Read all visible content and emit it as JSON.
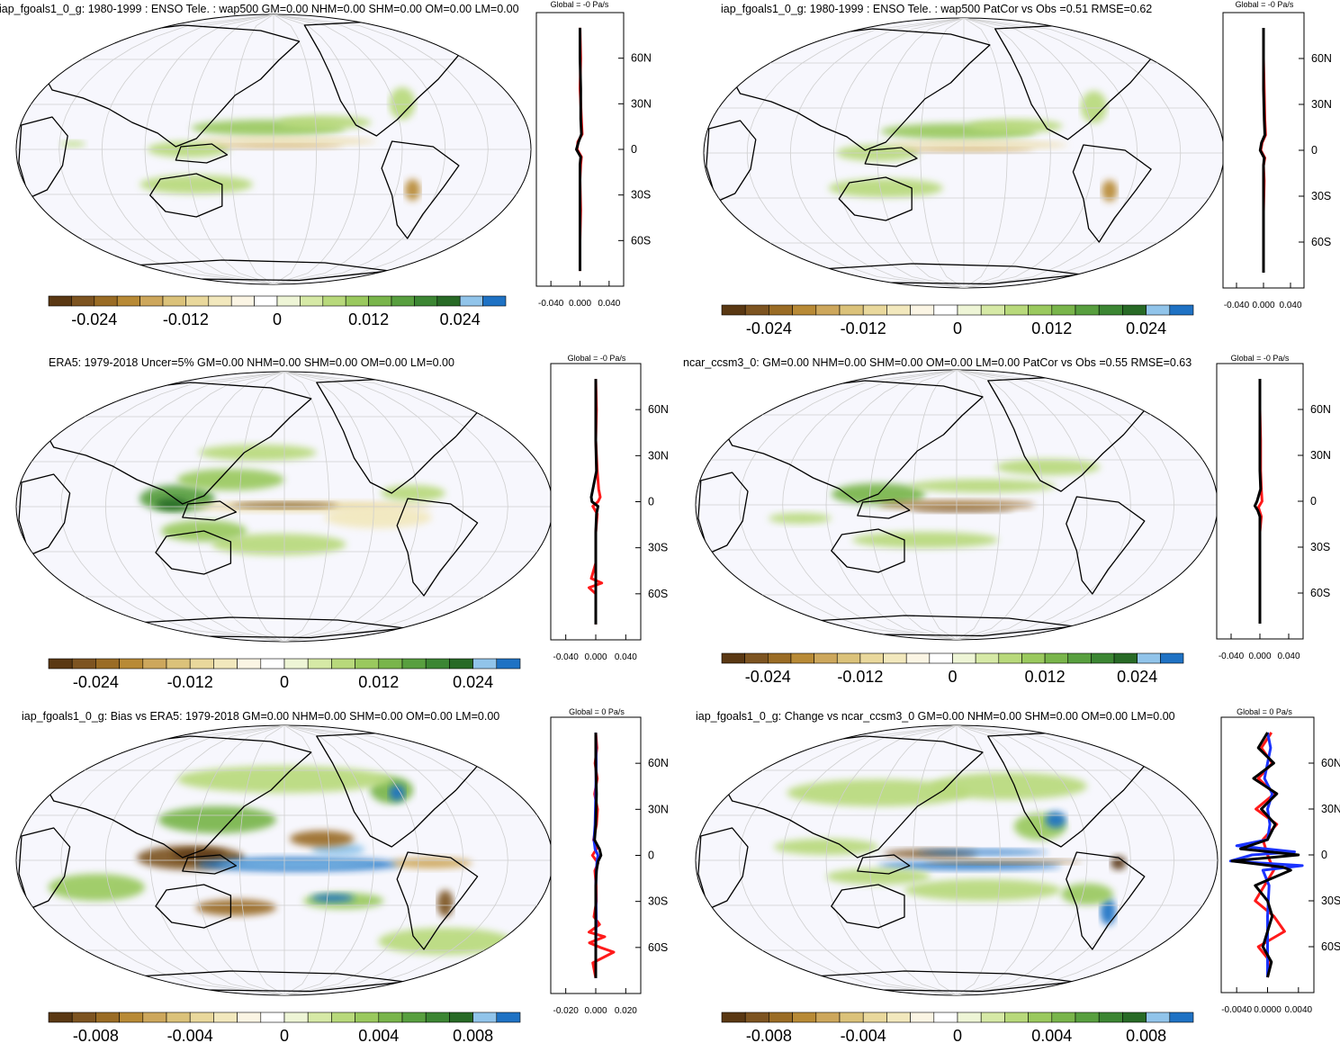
{
  "figure": {
    "palette": [
      "#5a3813",
      "#7d5421",
      "#9a6c25",
      "#b88a36",
      "#cda75c",
      "#dbc27a",
      "#e9d89c",
      "#f2e8bd",
      "#fbf5e4",
      "#ffffff",
      "#eef5d6",
      "#d6e9a6",
      "#b8d97b",
      "#9ac95e",
      "#79b54b",
      "#589f3f",
      "#3c8633",
      "#286a26",
      "#91c4ea",
      "#1f72c4"
    ],
    "land_color": "#f7f7fd",
    "grid_color": "#cfcfcf"
  },
  "chart_data": [
    {
      "type": "heatmap",
      "panel": "top-left",
      "title": "iap_fgoals1_0_g: 1980-1999 : ENSO Tele. : wap500 GM=0.00 NHM=0.00 SHM=0.00 OM=0.00 LM=0.00",
      "colorbar_ticks": [
        "-0.024",
        "-0.012",
        "0",
        "0.012",
        "0.024"
      ],
      "colorbar_range": [
        -0.03,
        0.03
      ],
      "zonal_title": "Global = -0 Pa/s",
      "zonal_xticks": [
        "-0.040",
        "0.000",
        "0.040"
      ],
      "zonal_xlim": [
        -0.06,
        0.06
      ],
      "zonal_yticks": [
        "60N",
        "30N",
        "0",
        "30S",
        "60S"
      ],
      "zonal_profile": {
        "lat": [
          80,
          60,
          40,
          20,
          10,
          5,
          0,
          -5,
          -10,
          -20,
          -40,
          -60,
          -80
        ],
        "values": [
          0.0,
          0.001,
          0.0,
          0.002,
          0.003,
          -0.003,
          -0.004,
          0.002,
          0.001,
          0.0,
          0.001,
          0.0,
          0.0
        ]
      },
      "zonal_profile_2": {
        "lat": [
          80,
          60,
          40,
          20,
          10,
          5,
          0,
          -5,
          -10,
          -20,
          -40,
          -60,
          -80
        ],
        "values": [
          0.0,
          0.0,
          0.001,
          0.001,
          0.002,
          -0.002,
          -0.005,
          0.001,
          0.0,
          0.0,
          0.0,
          0.0,
          0.0
        ]
      },
      "zonal_profile_3": null
    },
    {
      "type": "heatmap",
      "panel": "top-right",
      "title": "iap_fgoals1_0_g: 1980-1999 : ENSO Tele. : wap500 PatCor vs Obs =0.51 RMSE=0.62",
      "colorbar_ticks": [
        "-0.024",
        "-0.012",
        "0",
        "0.012",
        "0.024"
      ],
      "colorbar_range": [
        -0.03,
        0.03
      ],
      "zonal_title": "Global = -0 Pa/s",
      "zonal_xticks": [
        "-0.040",
        "0.000",
        "0.040"
      ],
      "zonal_xlim": [
        -0.06,
        0.06
      ],
      "zonal_yticks": [
        "60N",
        "30N",
        "0",
        "30S",
        "60S"
      ],
      "zonal_profile": {
        "lat": [
          80,
          60,
          40,
          20,
          10,
          5,
          0,
          -5,
          -10,
          -20,
          -40,
          -60,
          -80
        ],
        "values": [
          0.0,
          0.0,
          0.001,
          0.002,
          0.003,
          -0.002,
          -0.004,
          0.002,
          0.0,
          0.001,
          0.0,
          0.0,
          0.0
        ]
      },
      "zonal_profile_2": {
        "lat": [
          80,
          60,
          40,
          20,
          10,
          5,
          0,
          -5,
          -10,
          -20,
          -40,
          -60,
          -80
        ],
        "values": [
          0.0,
          0.0,
          0.0,
          0.001,
          0.002,
          -0.003,
          -0.005,
          0.001,
          0.0,
          0.0,
          0.0,
          0.0,
          0.0
        ]
      },
      "zonal_profile_3": null
    },
    {
      "type": "heatmap",
      "panel": "middle-left",
      "title": "ERA5: 1979-2018 Uncer=5% GM=0.00 NHM=0.00 SHM=0.00 OM=0.00 LM=0.00",
      "colorbar_ticks": [
        "-0.024",
        "-0.012",
        "0",
        "0.012",
        "0.024"
      ],
      "colorbar_range": [
        -0.03,
        0.03
      ],
      "zonal_title": "Global = -0 Pa/s",
      "zonal_xticks": [
        "-0.040",
        "0.000",
        "0.040"
      ],
      "zonal_xlim": [
        -0.06,
        0.06
      ],
      "zonal_yticks": [
        "60N",
        "30N",
        "0",
        "30S",
        "60S"
      ],
      "zonal_profile": {
        "lat": [
          80,
          60,
          40,
          20,
          8,
          3,
          0,
          -3,
          -8,
          -20,
          -40,
          -50,
          -53,
          -56,
          -60,
          -80
        ],
        "values": [
          0.0,
          0.001,
          0.0,
          0.002,
          0.004,
          0.006,
          0.003,
          -0.004,
          0.002,
          0.0,
          0.0,
          -0.006,
          0.008,
          -0.009,
          0.0,
          0.0
        ]
      },
      "zonal_profile_2": {
        "lat": [
          80,
          60,
          40,
          20,
          8,
          3,
          0,
          -3,
          -8,
          -20,
          -40,
          -60,
          -80
        ],
        "values": [
          0.0,
          0.0,
          0.0,
          0.001,
          -0.004,
          -0.006,
          -0.005,
          0.003,
          0.001,
          0.0,
          0.0,
          0.0,
          0.0
        ]
      },
      "zonal_profile_3": null
    },
    {
      "type": "heatmap",
      "panel": "middle-right",
      "title": "ncar_ccsm3_0: GM=0.00 NHM=0.00 SHM=0.00 OM=0.00 LM=0.00 PatCor vs Obs =0.55 RMSE=0.63",
      "colorbar_ticks": [
        "-0.024",
        "-0.012",
        "0",
        "0.012",
        "0.024"
      ],
      "colorbar_range": [
        -0.03,
        0.03
      ],
      "zonal_title": "Global = -0 Pa/s",
      "zonal_xticks": [
        "-0.040",
        "0.000",
        "0.040"
      ],
      "zonal_xlim": [
        -0.06,
        0.06
      ],
      "zonal_yticks": [
        "60N",
        "30N",
        "0",
        "30S",
        "60S"
      ],
      "zonal_profile": {
        "lat": [
          80,
          60,
          40,
          20,
          8,
          0,
          -4,
          -10,
          -20,
          -40,
          -60,
          -80
        ],
        "values": [
          0.0,
          0.0,
          0.001,
          0.001,
          0.002,
          0.003,
          -0.002,
          0.002,
          0.0,
          0.0,
          0.0,
          0.0
        ]
      },
      "zonal_profile_2": {
        "lat": [
          80,
          60,
          40,
          20,
          8,
          0,
          -3,
          -6,
          -10,
          -20,
          -40,
          -60,
          -80
        ],
        "values": [
          0.0,
          0.0,
          0.0,
          0.0,
          0.001,
          -0.004,
          -0.007,
          -0.003,
          0.0,
          0.0,
          0.0,
          0.0,
          0.0
        ]
      },
      "zonal_profile_3": null
    },
    {
      "type": "heatmap",
      "panel": "bottom-left",
      "title": "iap_fgoals1_0_g: Bias vs ERA5: 1979-2018 GM=0.00 NHM=0.00 SHM=0.00 OM=0.00 LM=0.00",
      "colorbar_ticks": [
        "-0.008",
        "-0.004",
        "0",
        "0.004",
        "0.008"
      ],
      "colorbar_range": [
        -0.01,
        0.01
      ],
      "zonal_title": "Global = 0 Pa/s",
      "zonal_xticks": [
        "-0.020",
        "0.000",
        "0.020"
      ],
      "zonal_xlim": [
        -0.03,
        0.03
      ],
      "zonal_yticks": [
        "60N",
        "30N",
        "0",
        "30S",
        "60S"
      ],
      "zonal_profile": {
        "lat": [
          80,
          70,
          60,
          50,
          40,
          30,
          20,
          10,
          5,
          0,
          -5,
          -10,
          -20,
          -30,
          -40,
          -45,
          -50,
          -53,
          -57,
          -60,
          -63,
          -70,
          -80
        ],
        "values": [
          0.0,
          0.0008,
          -0.0005,
          0.001,
          -0.0008,
          0.0012,
          0.0005,
          -0.0015,
          0.001,
          -0.0022,
          0.0015,
          -0.0006,
          0.0003,
          0.0004,
          -0.0012,
          0.0025,
          -0.0045,
          0.006,
          -0.0042,
          0.003,
          0.012,
          -0.002,
          0.0
        ]
      },
      "zonal_profile_2": {
        "lat": [
          80,
          60,
          40,
          20,
          10,
          4,
          0,
          -4,
          -10,
          -20,
          -40,
          -60,
          -80
        ],
        "values": [
          0.0,
          0.0,
          0.0005,
          0.0,
          -0.0008,
          0.0025,
          0.0035,
          0.0015,
          0.0005,
          0.0,
          0.0,
          0.0,
          0.0
        ]
      },
      "zonal_profile_3": {
        "lat": [
          80,
          60,
          40,
          20,
          10,
          4,
          0,
          -4,
          -10,
          -20,
          -40,
          -60,
          -80
        ],
        "values": [
          0.0,
          0.0003,
          0.0,
          -0.0005,
          -0.0012,
          -0.0004,
          0.0015,
          0.0008,
          0.0004,
          0.0,
          0.0003,
          0.0,
          0.0
        ]
      }
    },
    {
      "type": "heatmap",
      "panel": "bottom-right",
      "title": "iap_fgoals1_0_g: Change vs ncar_ccsm3_0 GM=0.00 NHM=0.00 SHM=0.00 OM=0.00 LM=0.00",
      "colorbar_ticks": [
        "-0.008",
        "-0.004",
        "0",
        "0.004",
        "0.008"
      ],
      "colorbar_range": [
        -0.01,
        0.01
      ],
      "zonal_title": "Global = 0 Pa/s",
      "zonal_xticks": [
        "-0.0040",
        "0.0000",
        "0.0040"
      ],
      "zonal_xlim": [
        -0.006,
        0.006
      ],
      "zonal_yticks": [
        "60N",
        "30N",
        "0",
        "30S",
        "60S"
      ],
      "zonal_profile": {
        "lat": [
          80,
          70,
          60,
          50,
          40,
          30,
          20,
          10,
          0,
          -10,
          -20,
          -30,
          -40,
          -50,
          -60,
          -70,
          -80
        ],
        "values": [
          0.0005,
          -0.0008,
          0.0006,
          -0.0012,
          0.0009,
          -0.0015,
          0.0012,
          -0.0006,
          0.0,
          0.0008,
          -0.0004,
          -0.0016,
          0.0008,
          0.0022,
          -0.0012,
          0.0004,
          0.0
        ]
      },
      "zonal_profile_2": {
        "lat": [
          80,
          70,
          60,
          50,
          40,
          30,
          20,
          10,
          4,
          0,
          -4,
          -8,
          -10,
          -20,
          -30,
          -40,
          -60,
          -70,
          -80
        ],
        "values": [
          0.0,
          -0.0012,
          0.0008,
          -0.0018,
          0.0012,
          -0.0008,
          0.001,
          0.0,
          -0.0035,
          0.004,
          -0.0046,
          0.002,
          0.003,
          -0.0016,
          0.0,
          0.0006,
          -0.0006,
          0.0005,
          0.0
        ]
      },
      "zonal_profile_3": {
        "lat": [
          80,
          70,
          60,
          50,
          40,
          30,
          20,
          10,
          6,
          2,
          0,
          -4,
          -7,
          -10,
          -20,
          -40,
          -60,
          -80
        ],
        "values": [
          0.0,
          0.0004,
          0.0,
          -0.0004,
          0.0006,
          0.0,
          0.0003,
          0.0,
          -0.004,
          0.0035,
          -0.002,
          -0.0048,
          0.0045,
          -0.0006,
          0.0002,
          0.0,
          0.0,
          0.0
        ]
      }
    }
  ]
}
